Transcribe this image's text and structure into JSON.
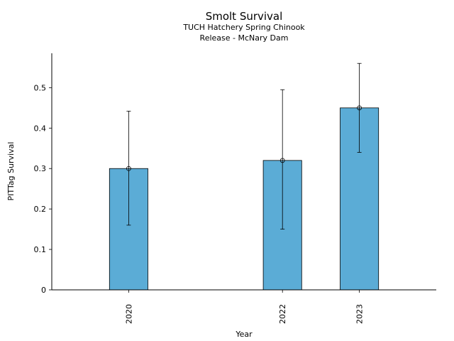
{
  "chart_data": {
    "type": "bar",
    "title": "Smolt Survival",
    "subtitle_lines": [
      "TUCH Hatchery Spring Chinook",
      "Release - McNary Dam"
    ],
    "xlabel": "Year",
    "ylabel": "PITTag Survival",
    "x": [
      2020,
      2022,
      2023
    ],
    "categories": [
      "2020",
      "2022",
      "2023"
    ],
    "values": [
      0.3,
      0.32,
      0.45
    ],
    "error_low": [
      0.16,
      0.15,
      0.34
    ],
    "error_high": [
      0.442,
      0.495,
      0.56
    ],
    "xlim": [
      2019.0,
      2024.0
    ],
    "ylim": [
      0,
      0.585
    ],
    "yticks": [
      0,
      0.1,
      0.2,
      0.3,
      0.4,
      0.5
    ],
    "ytick_labels": [
      "0",
      "0.1",
      "0.2",
      "0.3",
      "0.4",
      "0.5"
    ],
    "bar_color": "#5bacd6",
    "grid": false,
    "legend": "none"
  }
}
